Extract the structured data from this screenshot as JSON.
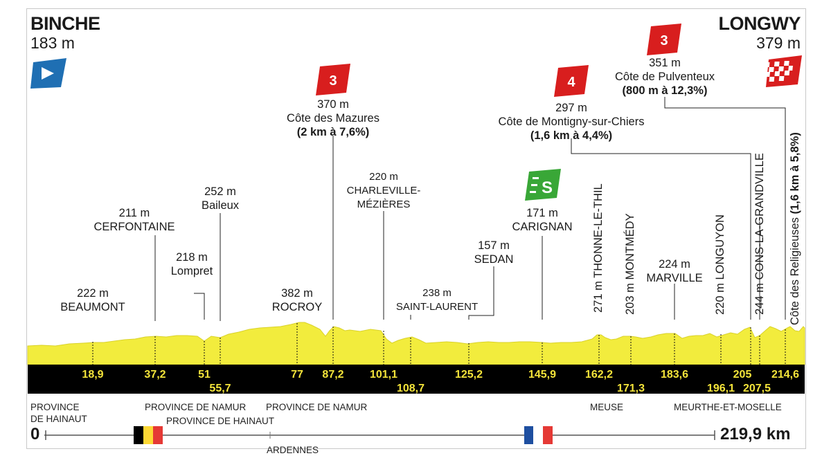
{
  "start": {
    "name": "BINCHE",
    "alt": "183 m"
  },
  "finish": {
    "name": "LONGWY",
    "alt": "379 m"
  },
  "climbs": [
    {
      "cat": "3",
      "alt": "370 m",
      "name": "Côte des Mazures",
      "detail": "(2 km à 7,6%)"
    },
    {
      "cat": "4",
      "alt": "297 m",
      "name": "Côte de Montigny-sur-Chiers",
      "detail": "(1,6 km à 4,4%)"
    },
    {
      "cat": "3",
      "alt": "351 m",
      "name": "Côte de Pulventeux",
      "detail": "(800 m à 12,3%)"
    },
    {
      "cat": "",
      "alt": "",
      "name": "Côte des Religieuses",
      "detail": "(1,6 km à 5,8%)"
    }
  ],
  "sprint": {
    "letter": "S",
    "alt": "171 m",
    "name": "CARIGNAN"
  },
  "places": [
    {
      "alt": "222 m",
      "name": "BEAUMONT"
    },
    {
      "alt": "211 m",
      "name": "CERFONTAINE"
    },
    {
      "alt": "218 m",
      "name": "Lompret"
    },
    {
      "alt": "252 m",
      "name": "Baileux"
    },
    {
      "alt": "382 m",
      "name": "ROCROY"
    },
    {
      "alt": "220 m",
      "name": "CHARLEVILLE-",
      "name2": "MÉZIÈRES"
    },
    {
      "alt": "238 m",
      "name": "SAINT-LAURENT"
    },
    {
      "alt": "157 m",
      "name": "SEDAN"
    },
    {
      "alt": "224 m",
      "name": "MARVILLE"
    }
  ],
  "vertical_places": [
    "271 m THONNE-LE-THIL",
    "203 m MONTMÉDY",
    "220 m LONGUYON",
    "244 m CONS-LA-GRANDVILLE"
  ],
  "km_marks": [
    "18,9",
    "37,2",
    "51",
    "55,7",
    "77",
    "87,2",
    "101,1",
    "108,7",
    "125,2",
    "145,9",
    "162,2",
    "171,3",
    "183,6",
    "196,1",
    "205",
    "207,5",
    "214,6"
  ],
  "provinces": {
    "hainaut": [
      "PROVINCE",
      "DE HAINAUT"
    ],
    "namur1": "PROVINCE DE NAMUR",
    "hainaut2": "PROVINCE DE HAINAUT",
    "namur2": "PROVINCE DE NAMUR",
    "ardennes": "ARDENNES",
    "meuse": "MEUSE",
    "mm": "MEURTHE-ET-MOSELLE"
  },
  "distance": {
    "start": "0",
    "total": "219,9 km"
  },
  "colors": {
    "profile": "#f2ec3d",
    "band": "#000000",
    "km_text": "#f4e43a",
    "cat": "#d81e1e",
    "sprint": "#39a737",
    "start_flag": "#1f6fb3"
  }
}
